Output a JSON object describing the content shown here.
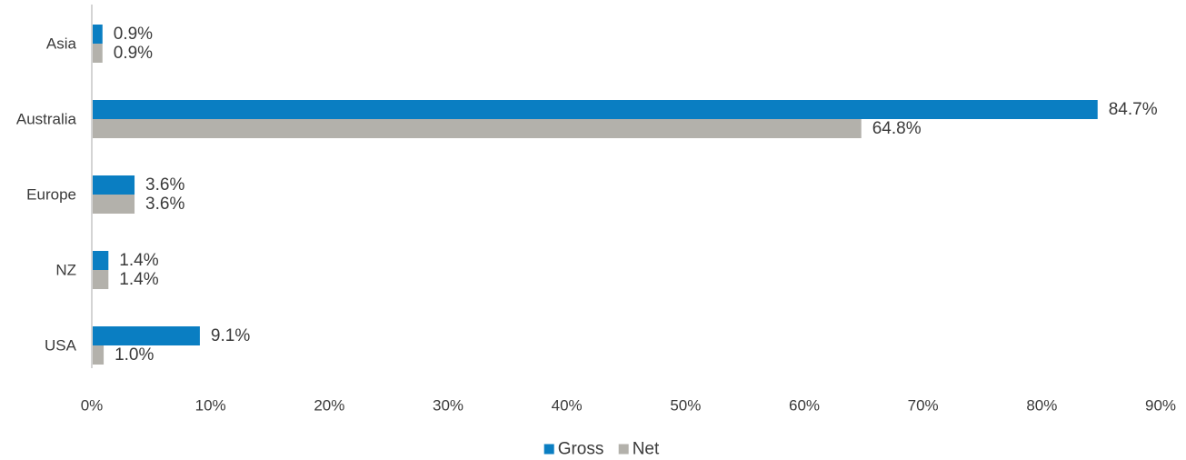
{
  "chart_data": {
    "type": "bar",
    "orientation": "horizontal",
    "categories": [
      "Asia",
      "Australia",
      "Europe",
      "NZ",
      "USA"
    ],
    "series": [
      {
        "name": "Gross",
        "color": "#0a7ec2",
        "values": [
          0.9,
          84.7,
          3.6,
          1.4,
          9.1
        ],
        "labels": [
          "0.9%",
          "84.7%",
          "3.6%",
          "1.4%",
          "9.1%"
        ]
      },
      {
        "name": "Net",
        "color": "#b3b1ab",
        "values": [
          0.9,
          64.8,
          3.6,
          1.4,
          1.0
        ],
        "labels": [
          "0.9%",
          "64.8%",
          "3.6%",
          "1.4%",
          "1.0%"
        ]
      }
    ],
    "xlim": [
      0,
      90
    ],
    "xticks": [
      0,
      10,
      20,
      30,
      40,
      50,
      60,
      70,
      80,
      90
    ],
    "xtick_labels": [
      "0%",
      "10%",
      "20%",
      "30%",
      "40%",
      "50%",
      "60%",
      "70%",
      "80%",
      "90%"
    ],
    "title": "",
    "xlabel": "",
    "ylabel": "",
    "grid": false,
    "legend_position": "bottom-center"
  }
}
